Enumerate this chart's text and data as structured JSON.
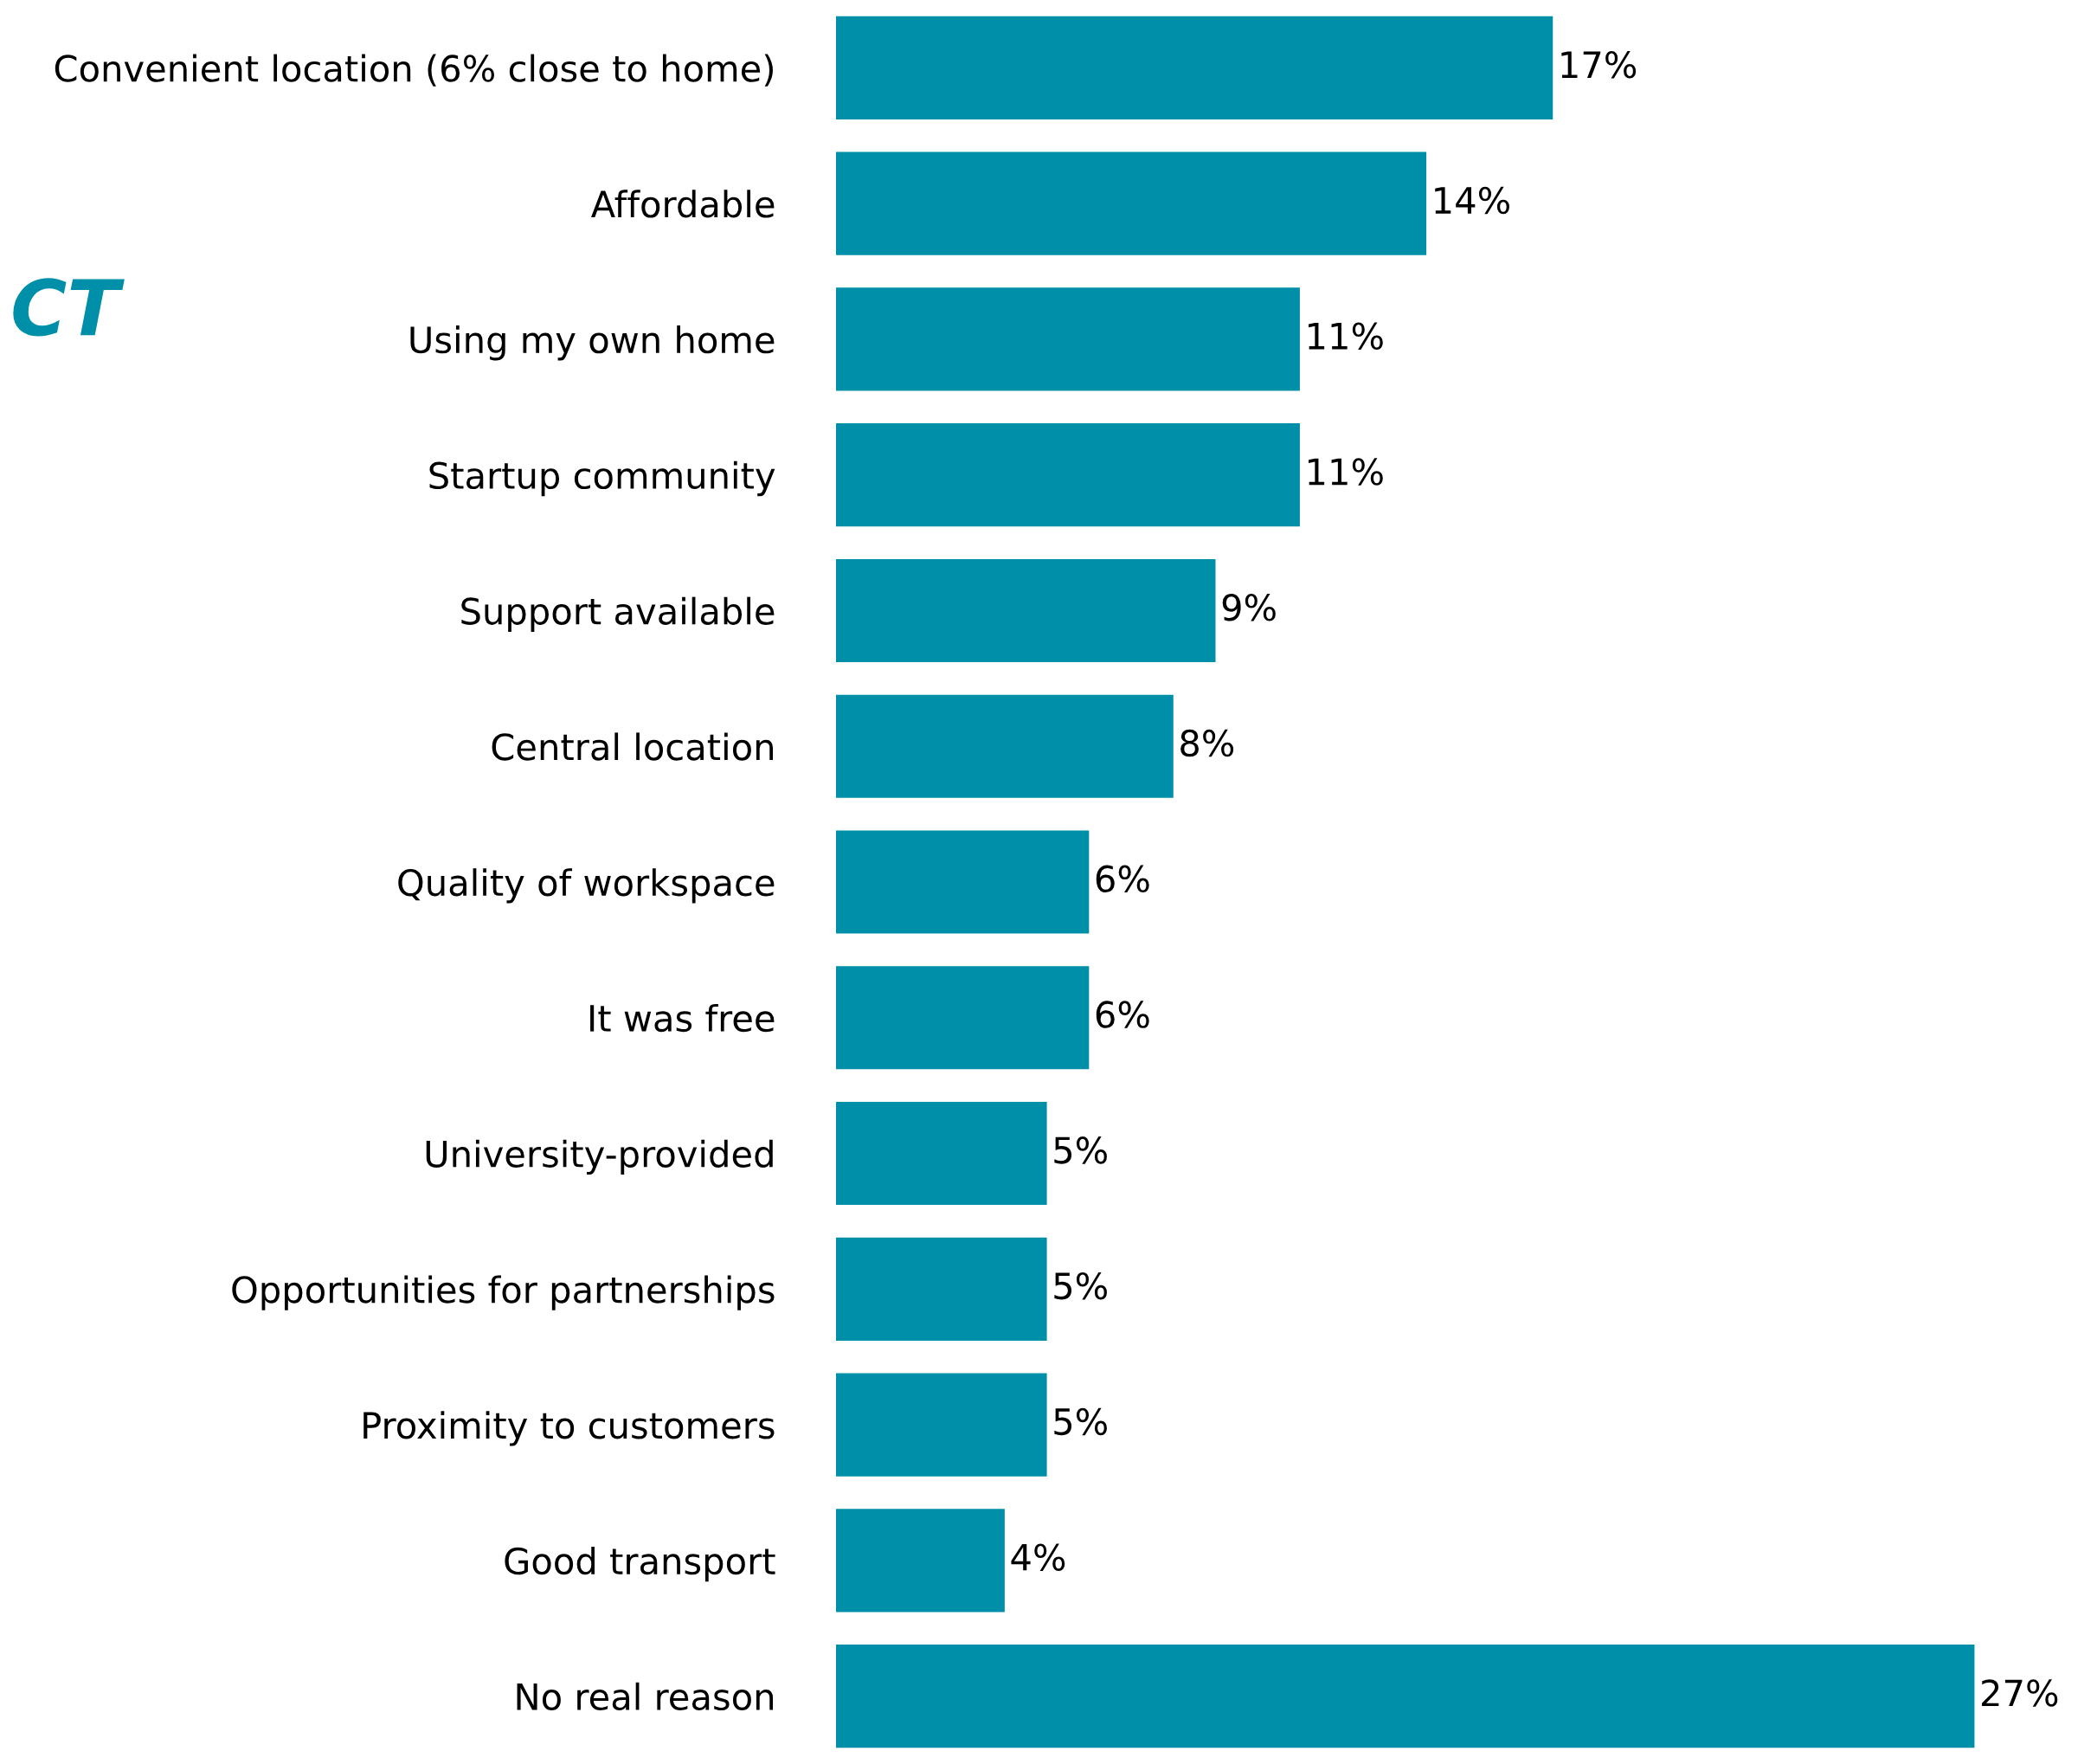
{
  "chart_data": {
    "type": "bar",
    "orientation": "horizontal",
    "categories": [
      "Convenient location (6% close to home)",
      "Affordable",
      "Using my own home",
      "Startup community",
      "Support available",
      "Central location",
      "Quality of workspace",
      "It was free",
      "University-provided",
      "Opportunities for partnerships",
      "Proximity to customers",
      "Good transport",
      "No real reason"
    ],
    "values": [
      17,
      14,
      11,
      11,
      9,
      8,
      6,
      6,
      5,
      5,
      5,
      4,
      27
    ],
    "value_labels": [
      "17%",
      "14%",
      "11%",
      "11%",
      "9%",
      "8%",
      "6%",
      "6%",
      "5%",
      "5%",
      "5%",
      "4%",
      "27%"
    ],
    "color": "#008fa8",
    "annotations": [
      "CT"
    ]
  }
}
